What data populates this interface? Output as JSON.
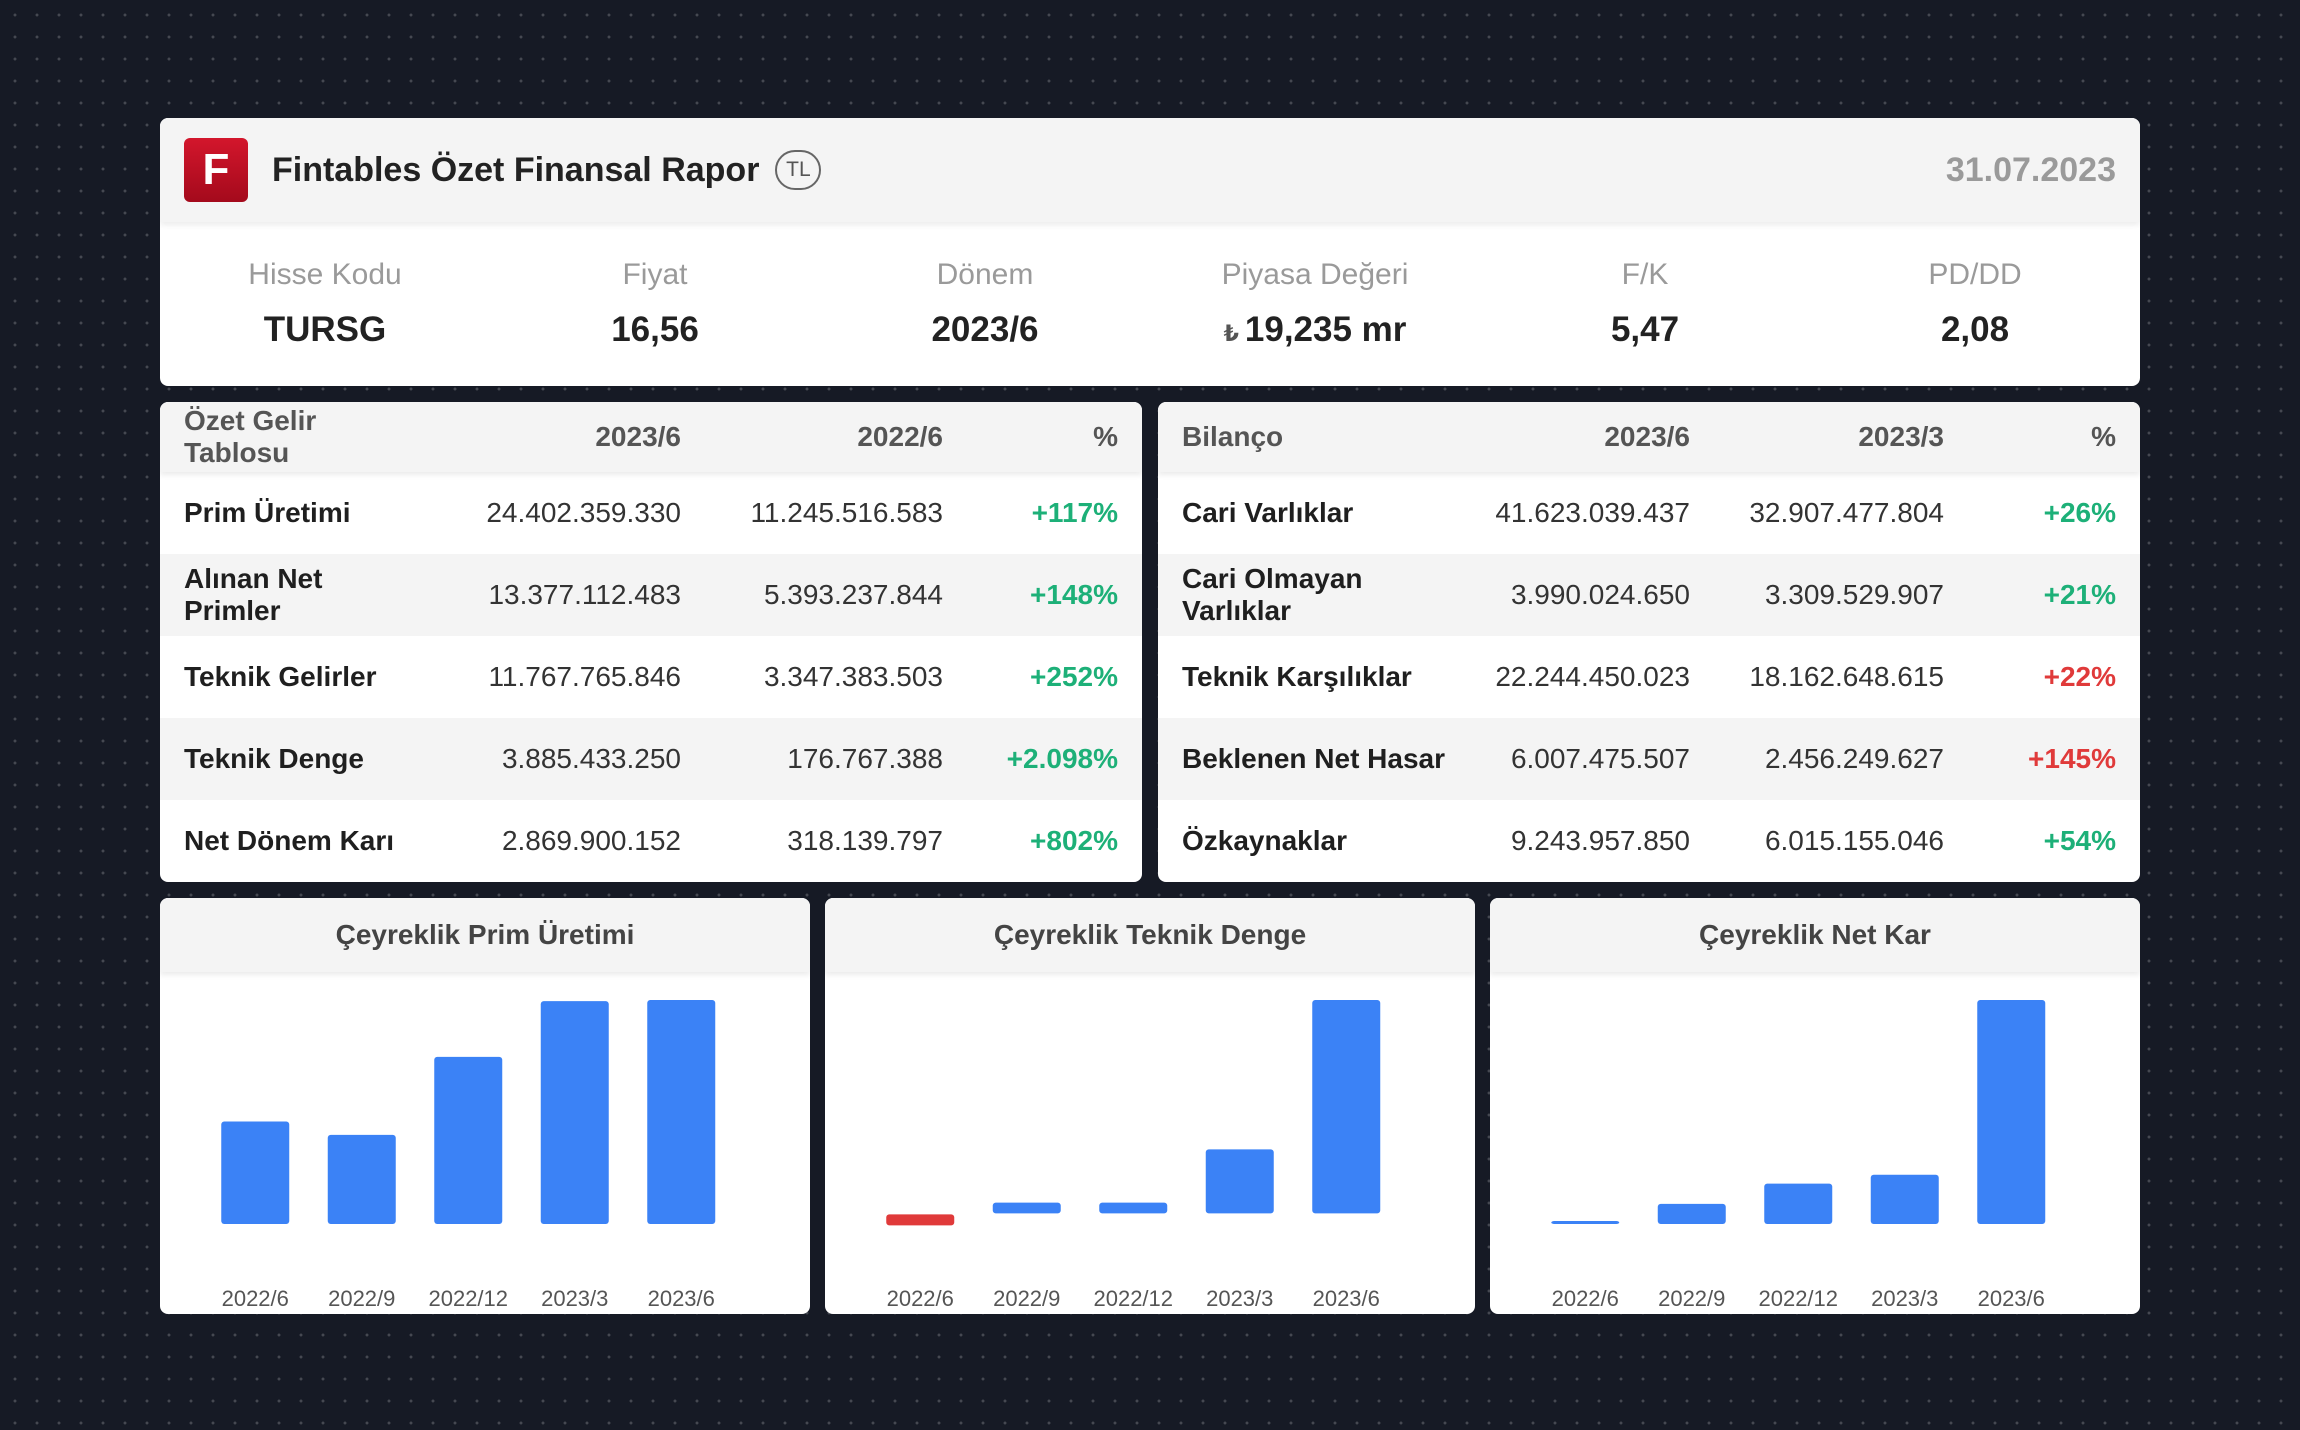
{
  "header": {
    "logo_letter": "F",
    "title": "Fintables Özet Finansal Rapor",
    "currency": "TL",
    "date": "31.07.2023"
  },
  "metrics": [
    {
      "label": "Hisse Kodu",
      "value": "TURSG"
    },
    {
      "label": "Fiyat",
      "value": "16,56"
    },
    {
      "label": "Dönem",
      "value": "2023/6"
    },
    {
      "label": "Piyasa Değeri",
      "prefix": "₺",
      "value": "19,235 mr"
    },
    {
      "label": "F/K",
      "value": "5,47"
    },
    {
      "label": "PD/DD",
      "value": "2,08"
    }
  ],
  "income_table": {
    "headers": [
      "Özet Gelir Tablosu",
      "2023/6",
      "2022/6",
      "%"
    ],
    "rows": [
      [
        "Prim Üretimi",
        "24.402.359.330",
        "11.245.516.583",
        "+117%"
      ],
      [
        "Alınan Net Primler",
        "13.377.112.483",
        "5.393.237.844",
        "+148%"
      ],
      [
        "Teknik Gelirler",
        "11.767.765.846",
        "3.347.383.503",
        "+252%"
      ],
      [
        "Teknik Denge",
        "3.885.433.250",
        "176.767.388",
        "+2.098%"
      ],
      [
        "Net Dönem Karı",
        "2.869.900.152",
        "318.139.797",
        "+802%"
      ]
    ],
    "pct_status": [
      "pos",
      "pos",
      "pos",
      "pos",
      "pos"
    ]
  },
  "balance_table": {
    "headers": [
      "Bilanço",
      "2023/6",
      "2023/3",
      "%"
    ],
    "rows": [
      [
        "Cari Varlıklar",
        "41.623.039.437",
        "32.907.477.804",
        "+26%"
      ],
      [
        "Cari Olmayan Varlıklar",
        "3.990.024.650",
        "3.309.529.907",
        "+21%"
      ],
      [
        "Teknik Karşılıklar",
        "22.244.450.023",
        "18.162.648.615",
        "+22%"
      ],
      [
        "Beklenen Net Hasar",
        "6.007.475.507",
        "2.456.249.627",
        "+145%"
      ],
      [
        "Özkaynaklar",
        "9.243.957.850",
        "6.015.155.046",
        "+54%"
      ]
    ],
    "pct_status": [
      "pos",
      "pos",
      "neg",
      "neg",
      "pos"
    ]
  },
  "colors": {
    "positive": "#1db078",
    "negative": "#e03a3a",
    "bar": "#3b82f6",
    "bar_negative": "#e03a3a"
  },
  "chart_data": [
    {
      "type": "bar",
      "title": "Çeyreklik Prim Üretimi",
      "categories": [
        "2022/6",
        "2022/9",
        "2022/12",
        "2023/3",
        "2023/6"
      ],
      "values": [
        4.6,
        4.0,
        7.5,
        10.0,
        10.05
      ],
      "ylim": [
        0,
        10.05
      ]
    },
    {
      "type": "bar",
      "title": "Çeyreklik Teknik Denge",
      "categories": [
        "2022/6",
        "2022/9",
        "2022/12",
        "2023/3",
        "2023/6"
      ],
      "values": [
        -0.05,
        0.05,
        0.05,
        0.3,
        1.0
      ],
      "ylim": [
        -0.05,
        1.0
      ]
    },
    {
      "type": "bar",
      "title": "Çeyreklik Net Kar",
      "categories": [
        "2022/6",
        "2022/9",
        "2022/12",
        "2023/3",
        "2023/6"
      ],
      "values": [
        0.01,
        0.09,
        0.18,
        0.22,
        1.0
      ],
      "ylim": [
        0,
        1.0
      ]
    }
  ]
}
